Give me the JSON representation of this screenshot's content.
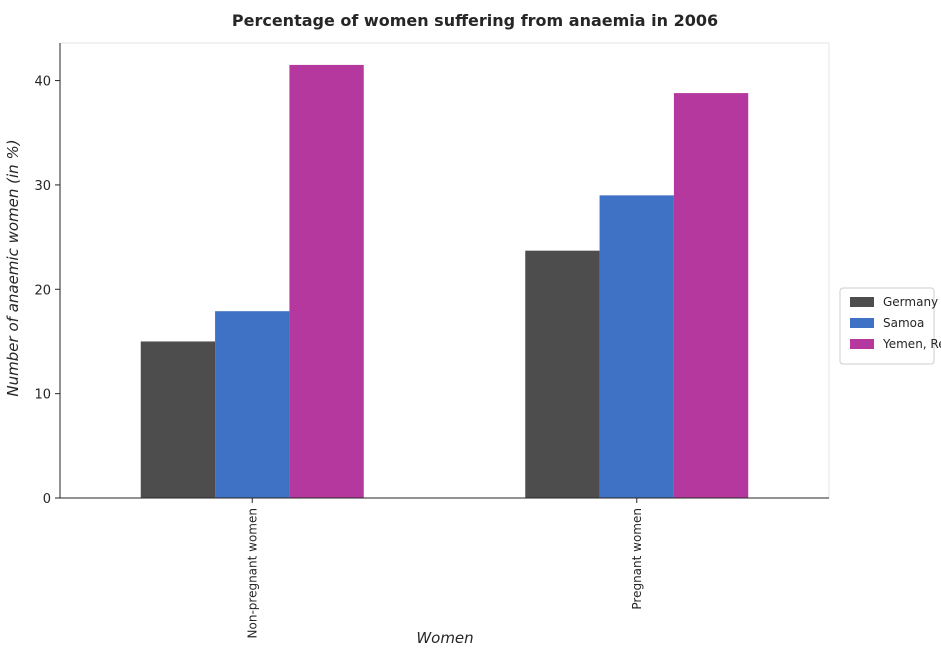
{
  "chart_data": {
    "type": "bar",
    "title": "Percentage of women suffering from anaemia in 2006",
    "xlabel": "Women",
    "ylabel": "Number of anaemic women (in %)",
    "categories": [
      "Non-pregnant women",
      "Pregnant women"
    ],
    "series": [
      {
        "name": "Germany",
        "color": "#4d4d4d",
        "values": [
          15.0,
          23.7
        ]
      },
      {
        "name": "Samoa",
        "color": "#3f72c4",
        "values": [
          17.9,
          29.0
        ]
      },
      {
        "name": "Yemen, Rep.",
        "color": "#b4389e",
        "values": [
          41.5,
          38.8
        ]
      }
    ],
    "ylim": [
      0,
      43.6
    ],
    "yticks": [
      0,
      10,
      20,
      30,
      40
    ],
    "ytick_labels": [
      "0",
      "10",
      "20",
      "30",
      "40"
    ],
    "grid": false,
    "legend_position": "center-right"
  }
}
